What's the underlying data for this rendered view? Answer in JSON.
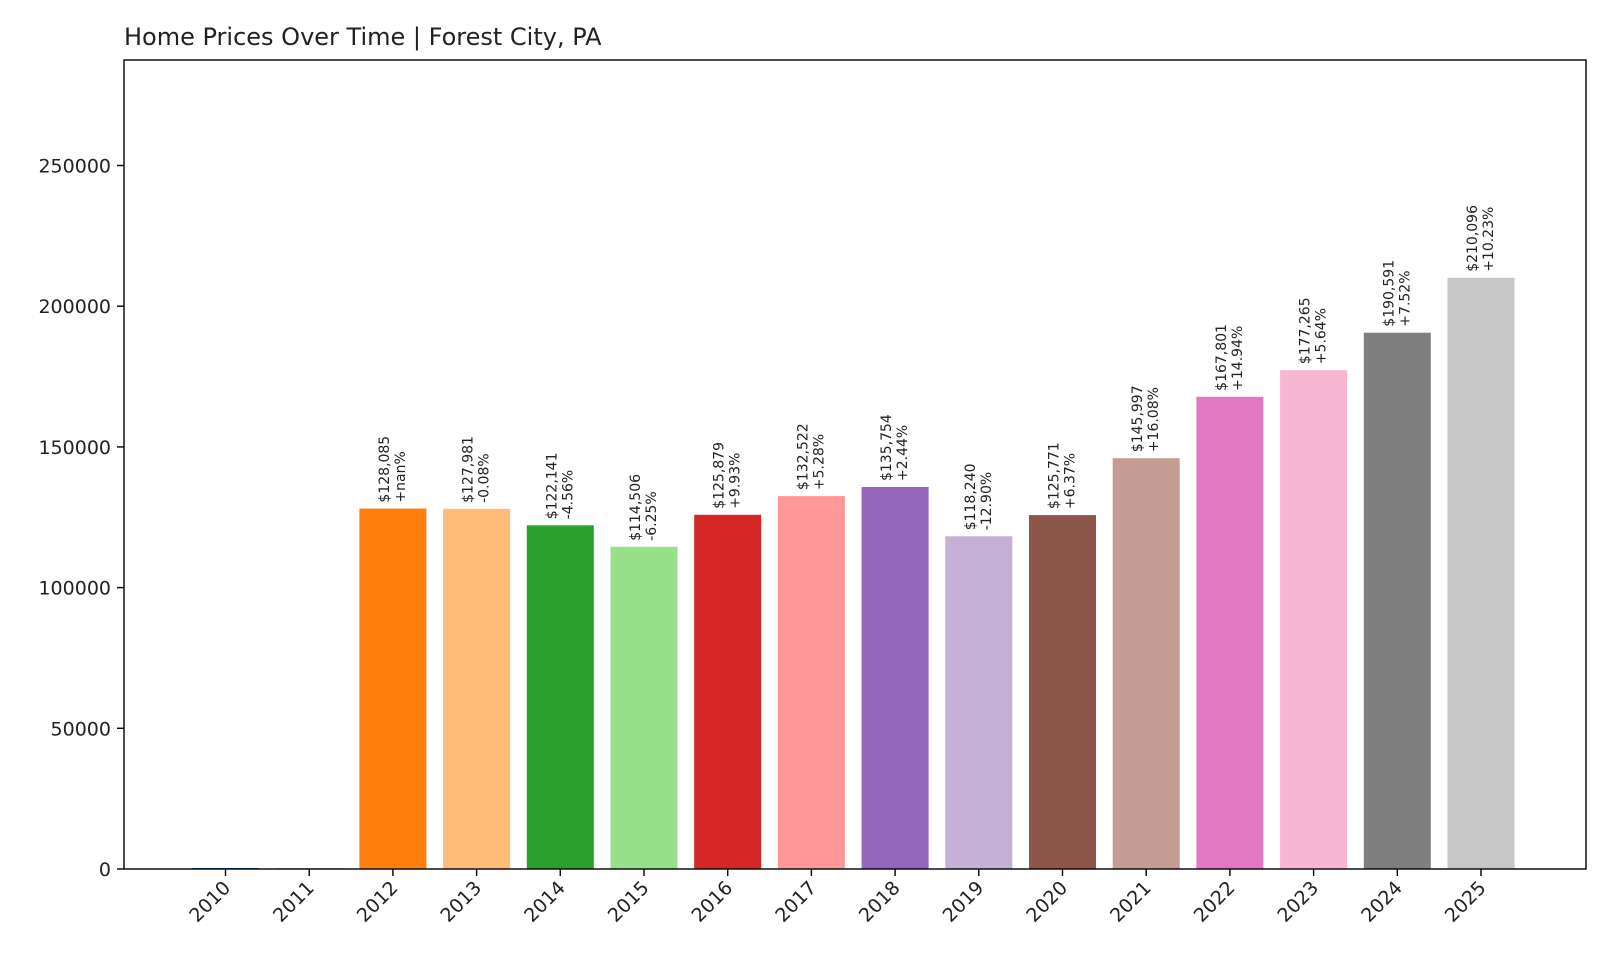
{
  "chart_data": {
    "type": "bar",
    "title": "Home Prices Over Time | Forest City, PA",
    "xlabel": "",
    "ylabel": "",
    "categories": [
      "2010",
      "2011",
      "2012",
      "2013",
      "2014",
      "2015",
      "2016",
      "2017",
      "2018",
      "2019",
      "2020",
      "2021",
      "2022",
      "2023",
      "2024",
      "2025"
    ],
    "values": [
      0,
      0,
      128085,
      127981,
      122141,
      114506,
      125879,
      132522,
      135754,
      118240,
      125771,
      145997,
      167801,
      177265,
      190591,
      210096
    ],
    "value_labels": [
      "",
      "",
      "$128,085",
      "$127,981",
      "$122,141",
      "$114,506",
      "$125,879",
      "$132,522",
      "$135,754",
      "$118,240",
      "$125,771",
      "$145,997",
      "$167,801",
      "$177,265",
      "$190,591",
      "$210,096"
    ],
    "change_labels": [
      "",
      "",
      "+nan%",
      "-0.08%",
      "-4.56%",
      "-6.25%",
      "+9.93%",
      "+5.28%",
      "+2.44%",
      "-12.90%",
      "+6.37%",
      "+16.08%",
      "+14.94%",
      "+5.64%",
      "+7.52%",
      "+10.23%"
    ],
    "colors": [
      "#1f77b4",
      "#aec7e8",
      "#ff7f0e",
      "#ffbb78",
      "#2ca02c",
      "#98df8a",
      "#d62728",
      "#ff9896",
      "#9467bd",
      "#c5b0d5",
      "#8c564b",
      "#c49c94",
      "#e377c2",
      "#f7b6d2",
      "#7f7f7f",
      "#c7c7c7"
    ],
    "yticks": [
      "0",
      "50000",
      "100000",
      "150000",
      "200000",
      "250000"
    ],
    "ylim": [
      0,
      287500
    ],
    "grid": false,
    "legend": "none"
  }
}
